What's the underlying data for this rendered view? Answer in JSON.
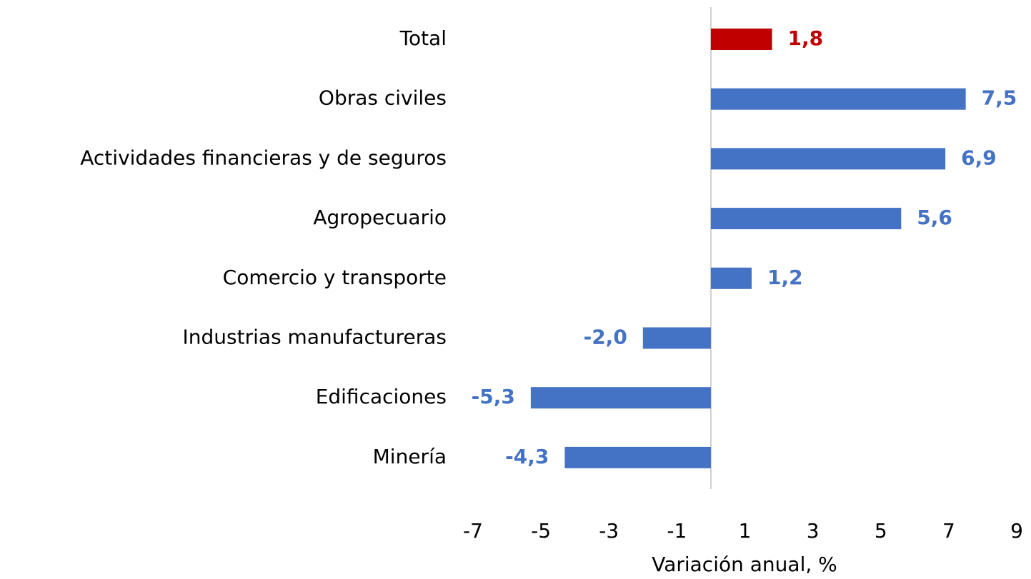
{
  "chart_data": {
    "type": "hbar",
    "x_label": "Variación anual, %",
    "categories": [
      "Total",
      "Obras civiles",
      "Actividades financieras y de seguros",
      "Agropecuario",
      "Comercio y transporte",
      "Industrias manufactureras",
      "Edificaciones",
      "Minería"
    ],
    "values": [
      1.8,
      7.5,
      6.9,
      5.6,
      1.2,
      -2.0,
      -5.3,
      -4.3
    ],
    "value_labels": [
      "1,8",
      "7,5",
      "6,9",
      "5,6",
      "1,2",
      "-2,0",
      "-5,3",
      "-4,3"
    ],
    "colors": [
      "#c00000",
      "#4472c4",
      "#4472c4",
      "#4472c4",
      "#4472c4",
      "#4472c4",
      "#4472c4",
      "#4472c4"
    ],
    "xlim": [
      -7,
      9
    ],
    "xticks": [
      -7,
      -5,
      -3,
      -1,
      1,
      3,
      5,
      7,
      9
    ],
    "grid": false
  }
}
